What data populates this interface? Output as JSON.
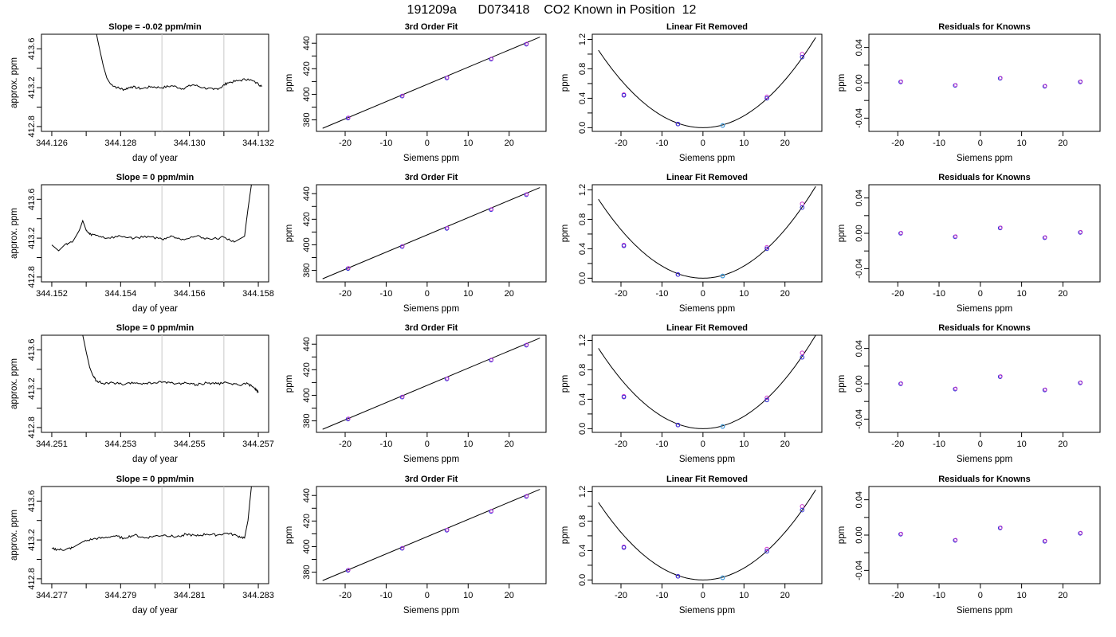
{
  "page": {
    "title": "191209a      D073418    CO2 Known in Position  12"
  },
  "chart_data": [
    {
      "row": 1,
      "col": 1,
      "type": "line",
      "title": "Slope =  -0.02  ppm/min",
      "xlabel": "day of year",
      "ylabel": "approx. ppm",
      "xlim": [
        344.1257,
        344.1323
      ],
      "ylim": [
        412.75,
        413.75
      ],
      "xticks": [
        344.126,
        344.128,
        344.13,
        344.132
      ],
      "xtick_labels": [
        "344.126",
        "344.128",
        "344.130",
        "344.132"
      ],
      "xminor": [
        344.127,
        344.129,
        344.131
      ],
      "yticks": [
        412.8,
        413.2,
        413.6
      ],
      "ytick_labels": [
        "412.8",
        "413.2",
        "413.6"
      ],
      "yminor": [
        413.0,
        413.4
      ],
      "vlines": [
        344.1292,
        344.131
      ],
      "x": [
        344.1273,
        344.1274,
        344.1275,
        344.1276,
        344.1277,
        344.1279,
        344.1281,
        344.1283,
        344.1286,
        344.1289,
        344.1292,
        344.1295,
        344.1298,
        344.1301,
        344.1304,
        344.1307,
        344.1309,
        344.1311,
        344.1314,
        344.1317,
        344.132,
        344.1321
      ],
      "y": [
        413.75,
        413.58,
        413.42,
        413.3,
        413.24,
        413.2,
        413.18,
        413.21,
        413.19,
        413.21,
        413.2,
        413.22,
        413.19,
        413.23,
        413.2,
        413.18,
        413.2,
        413.25,
        413.27,
        413.29,
        413.24,
        413.21
      ]
    },
    {
      "row": 1,
      "col": 2,
      "type": "scatter",
      "title": "3rd Order Fit",
      "xlabel": "Siemens ppm",
      "ylabel": "ppm",
      "xlim": [
        -27,
        29
      ],
      "ylim": [
        371,
        447
      ],
      "xticks": [
        -20,
        -10,
        0,
        10,
        20
      ],
      "xtick_labels": [
        "-20",
        "-10",
        "0",
        "10",
        "20"
      ],
      "yticks": [
        380,
        400,
        420,
        440
      ],
      "ytick_labels": [
        "380",
        "400",
        "420",
        "440"
      ],
      "yminor": [
        390,
        410,
        430
      ],
      "points_x": [
        -19.3,
        -6.1,
        4.8,
        15.6,
        24.2
      ],
      "points_y": [
        381.4,
        398.6,
        412.8,
        427.5,
        439.2
      ],
      "fit_line": {
        "x": [
          -25.5,
          27.5
        ],
        "y": [
          373.4,
          444.8
        ]
      }
    },
    {
      "row": 1,
      "col": 3,
      "type": "scatter",
      "title": "Linear Fit Removed",
      "xlabel": "Siemens ppm",
      "ylabel": "ppm",
      "xlim": [
        -27,
        29
      ],
      "ylim": [
        -0.05,
        1.27
      ],
      "xticks": [
        -20,
        -10,
        0,
        10,
        20
      ],
      "xtick_labels": [
        "-20",
        "-10",
        "0",
        "10",
        "20"
      ],
      "yticks": [
        0.0,
        0.4,
        0.8,
        1.2
      ],
      "ytick_labels": [
        "0.0",
        "0.4",
        "0.8",
        "1.2"
      ],
      "yminor": [
        0.2,
        0.6,
        1.0
      ],
      "points_x": [
        -19.3,
        -6.1,
        4.8,
        15.6,
        24.2
      ],
      "points_y": [
        0.44,
        0.05,
        0.03,
        0.4,
        0.96
      ],
      "points_alt_y": [
        0.45,
        0.05,
        0.03,
        0.42,
        1.0
      ],
      "curve_coeff": 0.00162
    },
    {
      "row": 1,
      "col": 4,
      "type": "scatter",
      "title": "Residuals for Knowns",
      "xlabel": "Siemens ppm",
      "ylabel": "ppm",
      "xlim": [
        -27,
        29
      ],
      "ylim": [
        -0.055,
        0.055
      ],
      "xticks": [
        -20,
        -10,
        0,
        10,
        20
      ],
      "xtick_labels": [
        "-20",
        "-10",
        "0",
        "10",
        "20"
      ],
      "yticks": [
        -0.04,
        0.0,
        0.04
      ],
      "ytick_labels": [
        "-0.04",
        "0.00",
        "0.04"
      ],
      "yminor": [
        -0.02,
        0.02
      ],
      "points_x": [
        -19.3,
        -6.1,
        4.8,
        15.6,
        24.2
      ],
      "points_y": [
        0.001,
        -0.003,
        0.005,
        -0.004,
        0.001
      ]
    },
    {
      "row": 2,
      "col": 1,
      "type": "line",
      "title": "Slope =  0  ppm/min",
      "xlabel": "day of year",
      "ylabel": "approx. ppm",
      "xlim": [
        344.1517,
        344.1583
      ],
      "ylim": [
        412.75,
        413.75
      ],
      "xticks": [
        344.152,
        344.154,
        344.156,
        344.158
      ],
      "xtick_labels": [
        "344.152",
        "344.154",
        "344.156",
        "344.158"
      ],
      "xminor": [
        344.153,
        344.155,
        344.157
      ],
      "yticks": [
        412.8,
        413.2,
        413.6
      ],
      "ytick_labels": [
        "412.8",
        "413.2",
        "413.6"
      ],
      "yminor": [
        413.0,
        413.4
      ],
      "vlines": [
        344.1552,
        344.157
      ],
      "x": [
        344.152,
        344.1522,
        344.1524,
        344.1526,
        344.1528,
        344.1529,
        344.153,
        344.1531,
        344.1533,
        344.1536,
        344.154,
        344.1544,
        344.1548,
        344.1552,
        344.1555,
        344.1558,
        344.1562,
        344.1566,
        344.157,
        344.1573,
        344.1576,
        344.1577,
        344.1578
      ],
      "y": [
        413.13,
        413.07,
        413.14,
        413.16,
        413.28,
        413.38,
        413.28,
        413.24,
        413.23,
        413.2,
        413.22,
        413.2,
        413.22,
        413.19,
        413.22,
        413.19,
        413.22,
        413.19,
        413.21,
        413.16,
        413.22,
        413.5,
        413.75
      ]
    },
    {
      "row": 2,
      "col": 2,
      "type": "scatter",
      "title": "3rd Order Fit",
      "xlabel": "Siemens ppm",
      "ylabel": "ppm",
      "xlim": [
        -27,
        29
      ],
      "ylim": [
        371,
        447
      ],
      "xticks": [
        -20,
        -10,
        0,
        10,
        20
      ],
      "xtick_labels": [
        "-20",
        "-10",
        "0",
        "10",
        "20"
      ],
      "yticks": [
        380,
        400,
        420,
        440
      ],
      "ytick_labels": [
        "380",
        "400",
        "420",
        "440"
      ],
      "yminor": [
        390,
        410,
        430
      ],
      "points_x": [
        -19.3,
        -6.1,
        4.8,
        15.6,
        24.2
      ],
      "points_y": [
        381.4,
        398.6,
        412.8,
        427.5,
        439.2
      ],
      "fit_line": {
        "x": [
          -25.5,
          27.5
        ],
        "y": [
          373.4,
          444.8
        ]
      }
    },
    {
      "row": 2,
      "col": 3,
      "type": "scatter",
      "title": "Linear Fit Removed",
      "xlabel": "Siemens ppm",
      "ylabel": "ppm",
      "xlim": [
        -27,
        29
      ],
      "ylim": [
        -0.05,
        1.27
      ],
      "xticks": [
        -20,
        -10,
        0,
        10,
        20
      ],
      "xtick_labels": [
        "-20",
        "-10",
        "0",
        "10",
        "20"
      ],
      "yticks": [
        0.0,
        0.4,
        0.8,
        1.2
      ],
      "ytick_labels": [
        "0.0",
        "0.4",
        "0.8",
        "1.2"
      ],
      "yminor": [
        0.2,
        0.6,
        1.0
      ],
      "points_x": [
        -19.3,
        -6.1,
        4.8,
        15.6,
        24.2
      ],
      "points_y": [
        0.44,
        0.05,
        0.03,
        0.4,
        0.96
      ],
      "points_alt_y": [
        0.45,
        0.05,
        0.03,
        0.42,
        1.01
      ],
      "curve_coeff": 0.00165
    },
    {
      "row": 2,
      "col": 4,
      "type": "scatter",
      "title": "Residuals for Knowns",
      "xlabel": "Siemens ppm",
      "ylabel": "ppm",
      "xlim": [
        -27,
        29
      ],
      "ylim": [
        -0.055,
        0.055
      ],
      "xticks": [
        -20,
        -10,
        0,
        10,
        20
      ],
      "xtick_labels": [
        "-20",
        "-10",
        "0",
        "10",
        "20"
      ],
      "yticks": [
        -0.04,
        0.0,
        0.04
      ],
      "ytick_labels": [
        "-0.04",
        "0.00",
        "0.04"
      ],
      "yminor": [
        -0.02,
        0.02
      ],
      "points_x": [
        -19.3,
        -6.1,
        4.8,
        15.6,
        24.2
      ],
      "points_y": [
        0.0,
        -0.004,
        0.006,
        -0.005,
        0.001
      ]
    },
    {
      "row": 3,
      "col": 1,
      "type": "line",
      "title": "Slope =  0  ppm/min",
      "xlabel": "day of year",
      "ylabel": "approx. ppm",
      "xlim": [
        344.2507,
        344.2573
      ],
      "ylim": [
        412.75,
        413.75
      ],
      "xticks": [
        344.251,
        344.253,
        344.255,
        344.257
      ],
      "xtick_labels": [
        "344.251",
        "344.253",
        "344.255",
        "344.257"
      ],
      "xminor": [
        344.252,
        344.254,
        344.256
      ],
      "yticks": [
        412.8,
        413.2,
        413.6
      ],
      "ytick_labels": [
        "412.8",
        "413.2",
        "413.6"
      ],
      "yminor": [
        413.0,
        413.4
      ],
      "vlines": [
        344.2542,
        344.256
      ],
      "x": [
        344.2519,
        344.252,
        344.2521,
        344.2522,
        344.2523,
        344.2525,
        344.2528,
        344.2531,
        344.2534,
        344.2537,
        344.254,
        344.2543,
        344.2546,
        344.2549,
        344.2552,
        344.2555,
        344.2558,
        344.2561,
        344.2564,
        344.2567,
        344.2569,
        344.257
      ],
      "y": [
        413.75,
        413.58,
        413.42,
        413.33,
        413.28,
        413.25,
        413.26,
        413.24,
        413.26,
        413.25,
        413.26,
        413.27,
        413.25,
        413.26,
        413.24,
        413.26,
        413.25,
        413.26,
        413.24,
        413.25,
        413.2,
        413.16
      ]
    },
    {
      "row": 3,
      "col": 2,
      "type": "scatter",
      "title": "3rd Order Fit",
      "xlabel": "Siemens ppm",
      "ylabel": "ppm",
      "xlim": [
        -27,
        29
      ],
      "ylim": [
        371,
        447
      ],
      "xticks": [
        -20,
        -10,
        0,
        10,
        20
      ],
      "xtick_labels": [
        "-20",
        "-10",
        "0",
        "10",
        "20"
      ],
      "yticks": [
        380,
        400,
        420,
        440
      ],
      "ytick_labels": [
        "380",
        "400",
        "420",
        "440"
      ],
      "yminor": [
        390,
        410,
        430
      ],
      "points_x": [
        -19.3,
        -6.1,
        4.8,
        15.6,
        24.2
      ],
      "points_y": [
        381.4,
        398.6,
        412.8,
        427.5,
        439.2
      ],
      "fit_line": {
        "x": [
          -25.5,
          27.5
        ],
        "y": [
          373.4,
          444.8
        ]
      }
    },
    {
      "row": 3,
      "col": 3,
      "type": "scatter",
      "title": "Linear Fit Removed",
      "xlabel": "Siemens ppm",
      "ylabel": "ppm",
      "xlim": [
        -27,
        29
      ],
      "ylim": [
        -0.05,
        1.27
      ],
      "xticks": [
        -20,
        -10,
        0,
        10,
        20
      ],
      "xtick_labels": [
        "-20",
        "-10",
        "0",
        "10",
        "20"
      ],
      "yticks": [
        0.0,
        0.4,
        0.8,
        1.2
      ],
      "ytick_labels": [
        "0.0",
        "0.4",
        "0.8",
        "1.2"
      ],
      "yminor": [
        0.2,
        0.6,
        1.0
      ],
      "points_x": [
        -19.3,
        -6.1,
        4.8,
        15.6,
        24.2
      ],
      "points_y": [
        0.43,
        0.05,
        0.03,
        0.39,
        0.97
      ],
      "points_alt_y": [
        0.44,
        0.05,
        0.03,
        0.42,
        1.03
      ],
      "curve_coeff": 0.00168
    },
    {
      "row": 3,
      "col": 4,
      "type": "scatter",
      "title": "Residuals for Knowns",
      "xlabel": "Siemens ppm",
      "ylabel": "ppm",
      "xlim": [
        -27,
        29
      ],
      "ylim": [
        -0.055,
        0.055
      ],
      "xticks": [
        -20,
        -10,
        0,
        10,
        20
      ],
      "xtick_labels": [
        "-20",
        "-10",
        "0",
        "10",
        "20"
      ],
      "yticks": [
        -0.04,
        0.0,
        0.04
      ],
      "ytick_labels": [
        "-0.04",
        "0.00",
        "0.04"
      ],
      "yminor": [
        -0.02,
        0.02
      ],
      "points_x": [
        -19.3,
        -6.1,
        4.8,
        15.6,
        24.2
      ],
      "points_y": [
        0.0,
        -0.006,
        0.008,
        -0.007,
        0.001
      ]
    },
    {
      "row": 4,
      "col": 1,
      "type": "line",
      "title": "Slope =  0  ppm/min",
      "xlabel": "day of year",
      "ylabel": "approx. ppm",
      "xlim": [
        344.2767,
        344.2833
      ],
      "ylim": [
        412.75,
        413.75
      ],
      "xticks": [
        344.277,
        344.279,
        344.281,
        344.283
      ],
      "xtick_labels": [
        "344.277",
        "344.279",
        "344.281",
        "344.283"
      ],
      "xminor": [
        344.278,
        344.28,
        344.282
      ],
      "yticks": [
        412.8,
        413.2,
        413.6
      ],
      "ytick_labels": [
        "412.8",
        "413.2",
        "413.6"
      ],
      "yminor": [
        413.0,
        413.4
      ],
      "vlines": [
        344.2802,
        344.282
      ],
      "x": [
        344.277,
        344.2772,
        344.2774,
        344.2776,
        344.2779,
        344.2782,
        344.2785,
        344.2788,
        344.2791,
        344.2794,
        344.2797,
        344.28,
        344.2803,
        344.2806,
        344.2809,
        344.2812,
        344.2815,
        344.2818,
        344.2821,
        344.2824,
        344.2826,
        344.2827,
        344.2828
      ],
      "y": [
        413.11,
        413.1,
        413.1,
        413.12,
        413.18,
        413.21,
        413.22,
        413.24,
        413.22,
        413.25,
        413.22,
        413.24,
        413.25,
        413.23,
        413.26,
        413.24,
        413.26,
        413.25,
        413.27,
        413.24,
        413.22,
        413.4,
        413.75
      ]
    },
    {
      "row": 4,
      "col": 2,
      "type": "scatter",
      "title": "3rd Order Fit",
      "xlabel": "Siemens ppm",
      "ylabel": "ppm",
      "xlim": [
        -27,
        29
      ],
      "ylim": [
        371,
        447
      ],
      "xticks": [
        -20,
        -10,
        0,
        10,
        20
      ],
      "xtick_labels": [
        "-20",
        "-10",
        "0",
        "10",
        "20"
      ],
      "yticks": [
        380,
        400,
        420,
        440
      ],
      "ytick_labels": [
        "380",
        "400",
        "420",
        "440"
      ],
      "yminor": [
        390,
        410,
        430
      ],
      "points_x": [
        -19.3,
        -6.1,
        4.8,
        15.6,
        24.2
      ],
      "points_y": [
        381.4,
        398.6,
        412.8,
        427.5,
        439.2
      ],
      "fit_line": {
        "x": [
          -25.5,
          27.5
        ],
        "y": [
          373.4,
          444.8
        ]
      }
    },
    {
      "row": 4,
      "col": 3,
      "type": "scatter",
      "title": "Linear Fit Removed",
      "xlabel": "Siemens ppm",
      "ylabel": "ppm",
      "xlim": [
        -27,
        29
      ],
      "ylim": [
        -0.05,
        1.27
      ],
      "xticks": [
        -20,
        -10,
        0,
        10,
        20
      ],
      "xtick_labels": [
        "-20",
        "-10",
        "0",
        "10",
        "20"
      ],
      "yticks": [
        0.0,
        0.4,
        0.8,
        1.2
      ],
      "ytick_labels": [
        "0.0",
        "0.4",
        "0.8",
        "1.2"
      ],
      "yminor": [
        0.2,
        0.6,
        1.0
      ],
      "points_x": [
        -19.3,
        -6.1,
        4.8,
        15.6,
        24.2
      ],
      "points_y": [
        0.44,
        0.05,
        0.03,
        0.39,
        0.95
      ],
      "points_alt_y": [
        0.45,
        0.05,
        0.03,
        0.42,
        1.0
      ],
      "curve_coeff": 0.00162
    },
    {
      "row": 4,
      "col": 4,
      "type": "scatter",
      "title": "Residuals for Knowns",
      "xlabel": "Siemens ppm",
      "ylabel": "ppm",
      "xlim": [
        -27,
        29
      ],
      "ylim": [
        -0.055,
        0.055
      ],
      "xticks": [
        -20,
        -10,
        0,
        10,
        20
      ],
      "xtick_labels": [
        "-20",
        "-10",
        "0",
        "10",
        "20"
      ],
      "yticks": [
        -0.04,
        0.0,
        0.04
      ],
      "ytick_labels": [
        "-0.04",
        "0.00",
        "0.04"
      ],
      "yminor": [
        -0.02,
        0.02
      ],
      "points_x": [
        -19.3,
        -6.1,
        4.8,
        15.6,
        24.2
      ],
      "points_y": [
        0.001,
        -0.006,
        0.008,
        -0.007,
        0.002
      ]
    }
  ],
  "colors": {
    "frame": "#000000",
    "line": "#000000",
    "vline": "#c8c8c8",
    "point_primary": "#2b2bd6",
    "point_alt": "#cc33cc",
    "point_cyan": "#22aadd"
  }
}
